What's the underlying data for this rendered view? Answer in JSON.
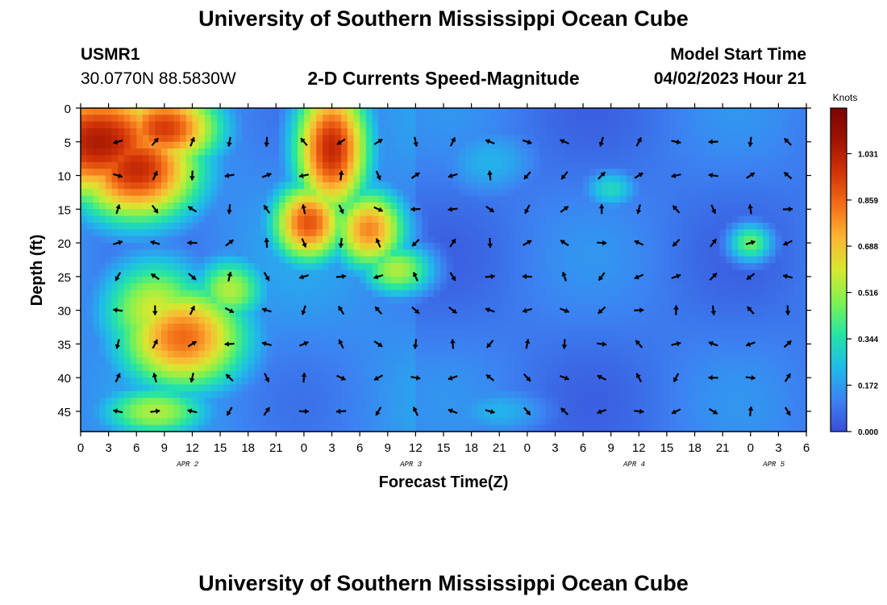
{
  "header": {
    "title": "University of Southern Mississippi Ocean Cube",
    "station": "USMR1",
    "coordinates": "30.0770N  88.5830W",
    "product": "2-D Currents Speed-Magnitude",
    "model_start_label": "Model Start Time",
    "model_start_value": "04/02/2023 Hour 21"
  },
  "footer": {
    "title": "University of Southern Mississippi Ocean Cube"
  },
  "chart_data": {
    "type": "heatmap",
    "title": "2-D Currents Speed-Magnitude",
    "xlabel": "Forecast Time(Z)",
    "ylabel": "Depth (ft)",
    "x_tick_labels": [
      "0",
      "3",
      "6",
      "9",
      "12",
      "15",
      "18",
      "21",
      "0",
      "3",
      "6",
      "9",
      "12",
      "15",
      "18",
      "21",
      "0",
      "3",
      "6",
      "9",
      "12",
      "15",
      "18",
      "21",
      "0",
      "3",
      "6"
    ],
    "x_range_hours": [
      0,
      78
    ],
    "date_labels": [
      {
        "text": "APR 2",
        "hour": 11.5
      },
      {
        "text": "APR 3",
        "hour": 35.5
      },
      {
        "text": "APR 4",
        "hour": 59.5
      },
      {
        "text": "APR 5",
        "hour": 74.5
      }
    ],
    "y_ticks": [
      0,
      5,
      10,
      15,
      20,
      25,
      30,
      35,
      40,
      45
    ],
    "y_range_ft": [
      0,
      48
    ],
    "colorbar": {
      "title": "Knots",
      "ticks": [
        1.031,
        0.859,
        0.688,
        0.516,
        0.344,
        0.172,
        0.0
      ],
      "tick_labels": [
        "1.031",
        "0.859",
        "0.688",
        "0.516",
        "0.344",
        "0.172",
        "0.000"
      ],
      "range": [
        0,
        1.2
      ],
      "colors": [
        "#3a4ed8",
        "#3c83f2",
        "#1fbce9",
        "#25e4a5",
        "#7ef252",
        "#d7e830",
        "#fbb534",
        "#f36e18",
        "#d23407",
        "#a01303",
        "#7a0403"
      ]
    },
    "arrow_times_hours": [
      4,
      8,
      12,
      16,
      20,
      24,
      28,
      32,
      36,
      40,
      44,
      48,
      52,
      56,
      60,
      64,
      68,
      72,
      76
    ],
    "arrow_depths_ft": [
      5,
      10,
      15,
      20,
      25,
      30,
      35,
      40,
      45
    ],
    "speed_field": [
      {
        "hour": 2,
        "depth": 5,
        "speed": 1.05,
        "rx": 9,
        "ry": 9
      },
      {
        "hour": 6,
        "depth": 9,
        "speed": 1.0,
        "rx": 7,
        "ry": 8
      },
      {
        "hour": 9,
        "depth": 3,
        "speed": 0.95,
        "rx": 6,
        "ry": 6
      },
      {
        "hour": 27,
        "depth": 6,
        "speed": 1.0,
        "rx": 4,
        "ry": 10
      },
      {
        "hour": 24.5,
        "depth": 17,
        "speed": 0.9,
        "rx": 4,
        "ry": 6
      },
      {
        "hour": 31,
        "depth": 18,
        "speed": 0.8,
        "rx": 4,
        "ry": 6
      },
      {
        "hour": 34,
        "depth": 24,
        "speed": 0.55,
        "rx": 4,
        "ry": 4
      },
      {
        "hour": 11,
        "depth": 34,
        "speed": 0.85,
        "rx": 7,
        "ry": 8
      },
      {
        "hour": 8,
        "depth": 30,
        "speed": 0.6,
        "rx": 6,
        "ry": 8
      },
      {
        "hour": 16,
        "depth": 27,
        "speed": 0.55,
        "rx": 4,
        "ry": 5
      },
      {
        "hour": 8,
        "depth": 45,
        "speed": 0.55,
        "rx": 6,
        "ry": 4
      },
      {
        "hour": 44,
        "depth": 8,
        "speed": 0.22,
        "rx": 6,
        "ry": 6
      },
      {
        "hour": 57,
        "depth": 12,
        "speed": 0.32,
        "rx": 3,
        "ry": 3
      },
      {
        "hour": 72,
        "depth": 20,
        "speed": 0.45,
        "rx": 2.5,
        "ry": 3
      },
      {
        "hour": 45,
        "depth": 45,
        "speed": 0.22,
        "rx": 6,
        "ry": 4
      }
    ],
    "grid": false
  }
}
